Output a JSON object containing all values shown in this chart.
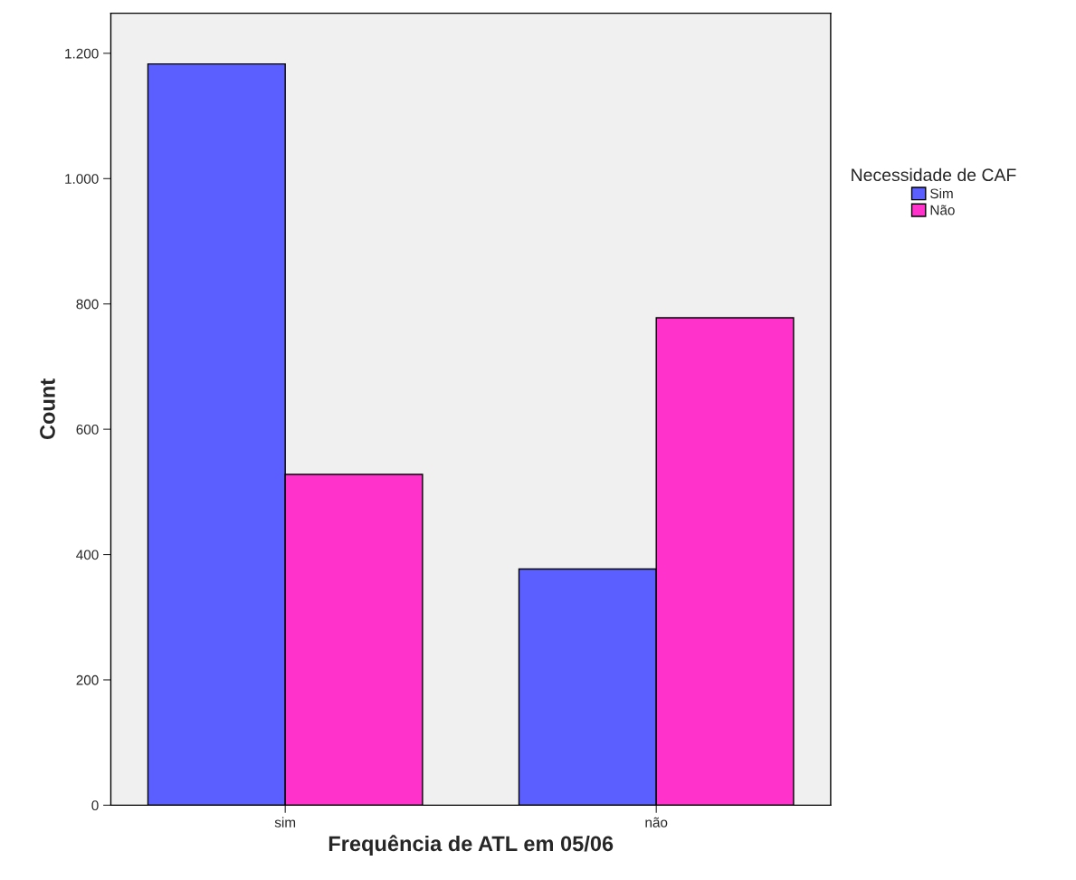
{
  "chart_data": {
    "type": "bar",
    "xlabel": "Frequência de ATL em 05/06",
    "ylabel": "Count",
    "categories": [
      "sim",
      "não"
    ],
    "series": [
      {
        "name": "Sim",
        "color": "#5b5fff",
        "values": [
          1183,
          377
        ]
      },
      {
        "name": "Não",
        "color": "#ff33cc",
        "values": [
          528,
          778
        ]
      }
    ],
    "ylim": [
      0,
      1264
    ],
    "yticks": [
      0,
      200,
      400,
      600,
      800,
      {
        "value": 1000,
        "label": "1.000"
      },
      {
        "value": 1200,
        "label": "1.200"
      }
    ],
    "legend_title": "Necessidade de CAF",
    "legend": "right",
    "grid": false
  }
}
